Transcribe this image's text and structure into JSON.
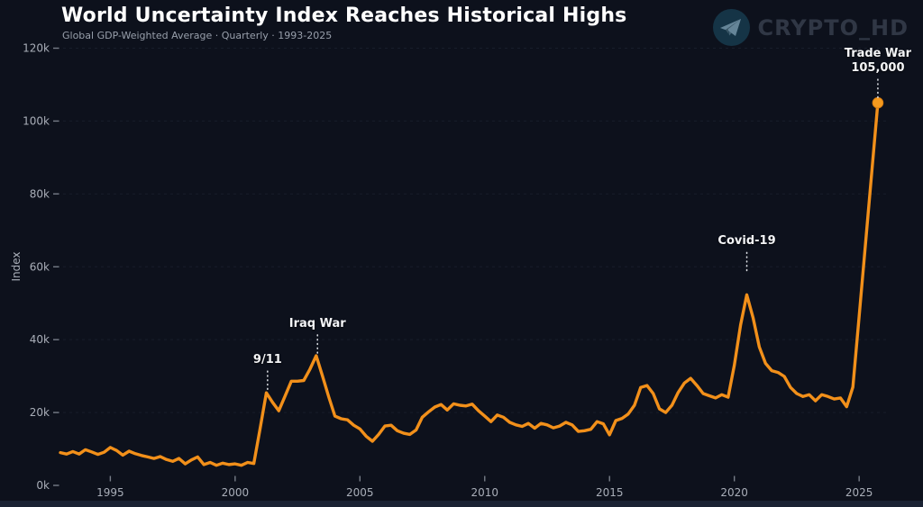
{
  "header": {
    "title": "World Uncertainty Index Reaches Historical Highs",
    "subtitle": "Global GDP-Weighted Average · Quarterly · 1993-2025"
  },
  "watermark": {
    "text": "CRYPTO_HD",
    "icon": "telegram-paper-plane-icon"
  },
  "colors": {
    "background": "#0d111c",
    "line": "#f2901a",
    "endpoint_dot": "#f59a1e",
    "title_text": "#ffffff",
    "subtitle_text": "#989fab",
    "axis_text": "#a9aeb8",
    "tick_mark": "#777d88",
    "gridline": "rgba(125,145,180,0.10)",
    "annotation_text": "#f3f4f6",
    "annotation_dotted_line": "#d8dbe0",
    "watermark_text": "#343b49",
    "watermark_circle": "#16384a",
    "watermark_plane": "#6d8fa3",
    "bottom_strip": "#1a2233"
  },
  "chart_data": {
    "type": "line",
    "title": "World Uncertainty Index Reaches Historical Highs",
    "subtitle": "Global GDP-Weighted Average · Quarterly · 1993-2025",
    "xlabel": "",
    "ylabel": "Index",
    "y_unit": "index points (values listed in thousands, axis shown as k)",
    "grid": "faint dashed horizontal gridlines",
    "legend": "none",
    "x_domain": [
      1993,
      2026.15
    ],
    "ylim_k": [
      0,
      120
    ],
    "y_ticks": [
      {
        "value_k": 0,
        "label": "0k"
      },
      {
        "value_k": 20,
        "label": "20k"
      },
      {
        "value_k": 40,
        "label": "40k"
      },
      {
        "value_k": 60,
        "label": "60k"
      },
      {
        "value_k": 80,
        "label": "80k"
      },
      {
        "value_k": 100,
        "label": "100k"
      },
      {
        "value_k": 120,
        "label": "120k"
      }
    ],
    "x_ticks": [
      {
        "value": 1995,
        "label": "1995"
      },
      {
        "value": 2000,
        "label": "2000"
      },
      {
        "value": 2005,
        "label": "2005"
      },
      {
        "value": 2010,
        "label": "2010"
      },
      {
        "value": 2015,
        "label": "2015"
      },
      {
        "value": 2020,
        "label": "2020"
      },
      {
        "value": 2025,
        "label": "2025"
      }
    ],
    "series": [
      {
        "name": "World Uncertainty Index (Global GDP-Weighted Average, quarterly)",
        "points_year_valuek": [
          [
            1993.0,
            9.0
          ],
          [
            1993.25,
            8.6
          ],
          [
            1993.5,
            9.3
          ],
          [
            1993.75,
            8.6
          ],
          [
            1994.0,
            9.8
          ],
          [
            1994.25,
            9.2
          ],
          [
            1994.5,
            8.5
          ],
          [
            1994.75,
            9.1
          ],
          [
            1995.0,
            10.4
          ],
          [
            1995.25,
            9.6
          ],
          [
            1995.5,
            8.3
          ],
          [
            1995.75,
            9.4
          ],
          [
            1996.0,
            8.7
          ],
          [
            1996.25,
            8.2
          ],
          [
            1996.5,
            7.8
          ],
          [
            1996.75,
            7.4
          ],
          [
            1997.0,
            7.9
          ],
          [
            1997.25,
            7.1
          ],
          [
            1997.5,
            6.6
          ],
          [
            1997.75,
            7.4
          ],
          [
            1998.0,
            5.9
          ],
          [
            1998.25,
            7.0
          ],
          [
            1998.5,
            7.8
          ],
          [
            1998.75,
            5.7
          ],
          [
            1999.0,
            6.3
          ],
          [
            1999.25,
            5.5
          ],
          [
            1999.5,
            6.1
          ],
          [
            1999.75,
            5.7
          ],
          [
            2000.0,
            5.9
          ],
          [
            2000.25,
            5.5
          ],
          [
            2000.5,
            6.3
          ],
          [
            2000.75,
            6.0
          ],
          [
            2001.0,
            15.5
          ],
          [
            2001.25,
            25.4
          ],
          [
            2001.5,
            22.8
          ],
          [
            2001.75,
            20.5
          ],
          [
            2002.0,
            24.5
          ],
          [
            2002.25,
            28.6
          ],
          [
            2002.5,
            28.6
          ],
          [
            2002.75,
            28.8
          ],
          [
            2003.0,
            31.9
          ],
          [
            2003.25,
            35.6
          ],
          [
            2003.5,
            30.0
          ],
          [
            2003.75,
            24.3
          ],
          [
            2004.0,
            19.0
          ],
          [
            2004.25,
            18.3
          ],
          [
            2004.5,
            18.0
          ],
          [
            2004.75,
            16.5
          ],
          [
            2005.0,
            15.5
          ],
          [
            2005.25,
            13.5
          ],
          [
            2005.5,
            12.1
          ],
          [
            2005.75,
            14.0
          ],
          [
            2006.0,
            16.3
          ],
          [
            2006.25,
            16.5
          ],
          [
            2006.5,
            15.0
          ],
          [
            2006.75,
            14.3
          ],
          [
            2007.0,
            14.0
          ],
          [
            2007.25,
            15.2
          ],
          [
            2007.5,
            18.7
          ],
          [
            2007.75,
            20.2
          ],
          [
            2008.0,
            21.5
          ],
          [
            2008.25,
            22.2
          ],
          [
            2008.5,
            20.7
          ],
          [
            2008.75,
            22.4
          ],
          [
            2009.0,
            22.0
          ],
          [
            2009.25,
            21.8
          ],
          [
            2009.5,
            22.3
          ],
          [
            2009.75,
            20.5
          ],
          [
            2010.0,
            19.0
          ],
          [
            2010.25,
            17.5
          ],
          [
            2010.5,
            19.3
          ],
          [
            2010.75,
            18.7
          ],
          [
            2011.0,
            17.3
          ],
          [
            2011.25,
            16.6
          ],
          [
            2011.5,
            16.2
          ],
          [
            2011.75,
            17.0
          ],
          [
            2012.0,
            15.7
          ],
          [
            2012.25,
            17.0
          ],
          [
            2012.5,
            16.6
          ],
          [
            2012.75,
            15.8
          ],
          [
            2013.0,
            16.3
          ],
          [
            2013.25,
            17.3
          ],
          [
            2013.5,
            16.6
          ],
          [
            2013.75,
            14.8
          ],
          [
            2014.0,
            15.0
          ],
          [
            2014.25,
            15.4
          ],
          [
            2014.5,
            17.5
          ],
          [
            2014.75,
            16.9
          ],
          [
            2015.0,
            13.9
          ],
          [
            2015.25,
            17.8
          ],
          [
            2015.5,
            18.4
          ],
          [
            2015.75,
            19.6
          ],
          [
            2016.0,
            22.0
          ],
          [
            2016.25,
            26.9
          ],
          [
            2016.5,
            27.4
          ],
          [
            2016.75,
            25.2
          ],
          [
            2017.0,
            21.0
          ],
          [
            2017.25,
            20.0
          ],
          [
            2017.5,
            22.0
          ],
          [
            2017.75,
            25.5
          ],
          [
            2018.0,
            28.1
          ],
          [
            2018.25,
            29.4
          ],
          [
            2018.5,
            27.4
          ],
          [
            2018.75,
            25.2
          ],
          [
            2019.0,
            24.6
          ],
          [
            2019.25,
            24.0
          ],
          [
            2019.5,
            24.9
          ],
          [
            2019.75,
            24.2
          ],
          [
            2020.0,
            33.0
          ],
          [
            2020.25,
            44.0
          ],
          [
            2020.5,
            52.3
          ],
          [
            2020.75,
            46.0
          ],
          [
            2021.0,
            38.0
          ],
          [
            2021.25,
            33.5
          ],
          [
            2021.5,
            31.5
          ],
          [
            2021.75,
            31.0
          ],
          [
            2022.0,
            29.9
          ],
          [
            2022.25,
            26.9
          ],
          [
            2022.5,
            25.2
          ],
          [
            2022.75,
            24.4
          ],
          [
            2023.0,
            24.9
          ],
          [
            2023.25,
            23.2
          ],
          [
            2023.5,
            24.9
          ],
          [
            2023.75,
            24.4
          ],
          [
            2024.0,
            23.7
          ],
          [
            2024.25,
            24.0
          ],
          [
            2024.5,
            21.6
          ],
          [
            2024.75,
            27.0
          ],
          [
            2025.0,
            46.5
          ],
          [
            2025.25,
            66.0
          ],
          [
            2025.5,
            85.5
          ],
          [
            2025.75,
            105.0
          ]
        ]
      }
    ],
    "annotations": [
      {
        "id": "nine-eleven",
        "lines": [
          "9/11"
        ],
        "x": 2001.3,
        "y_k": 25.4
      },
      {
        "id": "iraq-war",
        "lines": [
          "Iraq War"
        ],
        "x": 2003.3,
        "y_k": 35.6
      },
      {
        "id": "covid-19",
        "lines": [
          "Covid-19"
        ],
        "x": 2020.5,
        "y_k": 52.3
      },
      {
        "id": "trade-war",
        "lines": [
          "Trade War",
          "105,000"
        ],
        "x": 2025.75,
        "y_k": 105.0,
        "endpoint_dot": true
      }
    ]
  }
}
